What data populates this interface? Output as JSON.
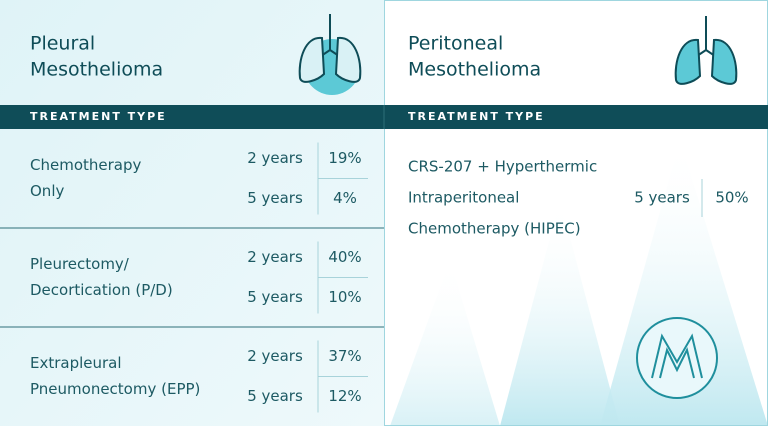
{
  "panels": [
    {
      "title_lines": [
        "Pleural",
        "Mesothelioma"
      ],
      "header": "TREATMENT TYPE",
      "rows": [
        {
          "treatment_lines": [
            "Chemotherapy",
            "Only"
          ],
          "outcomes": [
            {
              "period": "2 years",
              "survival": "19%"
            },
            {
              "period": "5 years",
              "survival": "4%"
            }
          ]
        },
        {
          "treatment_lines": [
            "Pleurectomy/",
            "Decortication (P/D)"
          ],
          "outcomes": [
            {
              "period": "2 years",
              "survival": "40%"
            },
            {
              "period": "5 years",
              "survival": "10%"
            }
          ]
        },
        {
          "treatment_lines": [
            "Extrapleural",
            "Pneumonectomy (EPP)"
          ],
          "outcomes": [
            {
              "period": "2 years",
              "survival": "37%"
            },
            {
              "period": "5 years",
              "survival": "12%"
            }
          ]
        }
      ]
    },
    {
      "title_lines": [
        "Peritoneal",
        "Mesothelioma"
      ],
      "header": "TREATMENT TYPE",
      "rows": [
        {
          "treatment_lines": [
            "CRS-207 + Hyperthermic",
            "Intraperitoneal",
            "Chemotherapy (HIPEC)"
          ],
          "outcomes": [
            {
              "period": "5 years",
              "survival": "50%"
            }
          ]
        }
      ]
    }
  ]
}
